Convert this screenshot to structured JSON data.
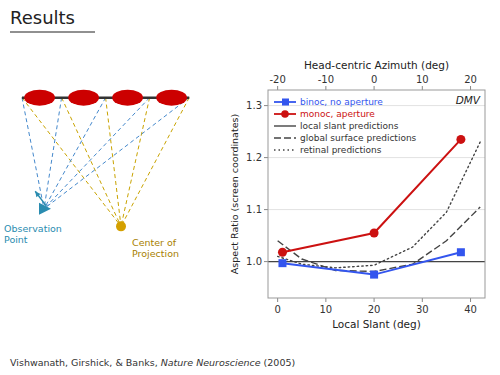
{
  "chart_data": {
    "type": "line",
    "title": "Results",
    "x_label": "Local Slant (deg)",
    "x2_label": "Head-centric Azimuth (deg)",
    "y_label": "Aspect Ratio (screen coordinates)",
    "xlim": [
      -2,
      43
    ],
    "xticks": [
      0,
      10,
      20,
      30,
      40
    ],
    "x2ticks": [
      {
        "value": 0,
        "label": "-20"
      },
      {
        "value": 10,
        "label": "-10"
      },
      {
        "value": 20,
        "label": "0"
      },
      {
        "value": 30,
        "label": "10"
      },
      {
        "value": 40,
        "label": "20"
      }
    ],
    "ylim": [
      0.93,
      1.33
    ],
    "yticks": [
      {
        "value": 1.0,
        "label": "1.0"
      },
      1.1,
      1.2,
      1.3
    ],
    "grid": true,
    "legend": "upper left",
    "series": [
      {
        "name": "binoc, no aperture",
        "color": "#3355ee",
        "marker": "square",
        "line_style": "solid",
        "x": [
          1,
          20,
          38
        ],
        "values": [
          0.997,
          0.975,
          1.018
        ]
      },
      {
        "name": "monoc, aperture",
        "color": "#cc1111",
        "marker": "circle",
        "line_style": "solid",
        "x": [
          1,
          20,
          38
        ],
        "values": [
          1.018,
          1.055,
          1.235
        ]
      },
      {
        "name": "local slant predictions",
        "color": "#444444",
        "line_style": "solid",
        "x": [
          -2,
          43
        ],
        "values": [
          1.0,
          1.0
        ]
      },
      {
        "name": "global surface predictions",
        "color": "#444444",
        "line_style": "dashed",
        "x": [
          0,
          5,
          12,
          20,
          28,
          35,
          42
        ],
        "values": [
          1.04,
          1.005,
          0.983,
          0.981,
          0.995,
          1.04,
          1.105
        ]
      },
      {
        "name": "retinal predictions",
        "color": "#444444",
        "line_style": "dotted",
        "x": [
          0,
          5,
          12,
          20,
          28,
          35,
          42
        ],
        "values": [
          1.01,
          0.995,
          0.988,
          0.993,
          1.028,
          1.095,
          1.23
        ]
      }
    ],
    "annotations": [
      "Observation\nPoint",
      "Center of\nProjection",
      "DMV"
    ],
    "source": [
      "Vishwanath, Girshick, & Banks, ",
      "Nature Neuroscience",
      " (2005)"
    ]
  }
}
